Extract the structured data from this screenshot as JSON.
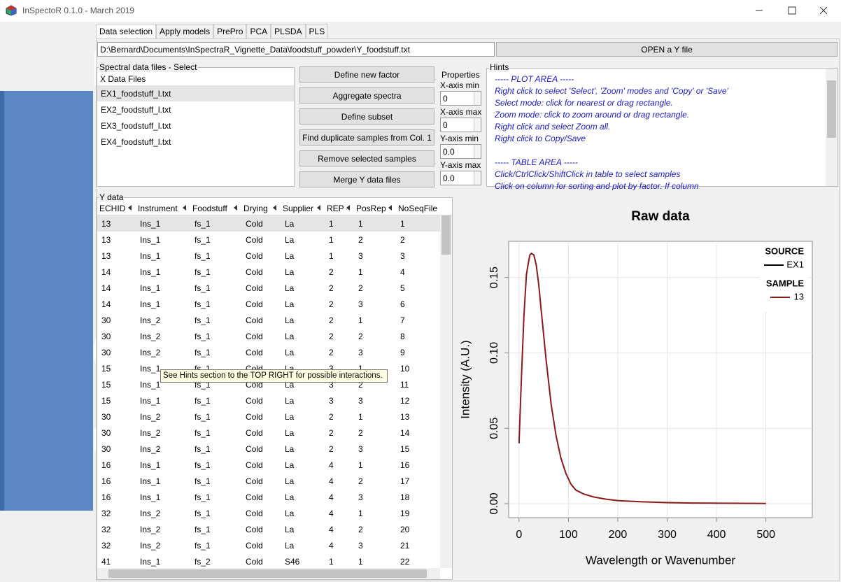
{
  "window": {
    "title": "InSpectoR 0.1.0  -  March 2019"
  },
  "logo": "InSpectraR",
  "tabs": [
    "Data selection",
    "Apply models",
    "PrePro",
    "PCA",
    "PLSDA",
    "PLS"
  ],
  "file_path": "D:\\Bernard\\Documents\\InSpectraR_Vignette_Data\\foodstuff_powder\\Y_foodstuff.txt",
  "open_button": "OPEN a Y file",
  "spectral": {
    "title": "Spectral data files - Select",
    "header": "X Data Files",
    "files": [
      "EX1_foodstuff_l.txt",
      "EX2_foodstuff_l.txt",
      "EX3_foodstuff_l.txt",
      "EX4_foodstuff_l.txt"
    ]
  },
  "buttons": [
    "Define new factor",
    "Aggregate spectra",
    "Define subset",
    "Find duplicate samples from Col. 1",
    "Remove selected samples",
    "Merge Y data files"
  ],
  "properties": {
    "title": "Properties",
    "fields": [
      {
        "label": "X-axis min",
        "value": "0"
      },
      {
        "label": "X-axis max",
        "value": "0"
      },
      {
        "label": "Y-axis min",
        "value": "0.0"
      },
      {
        "label": "Y-axis max",
        "value": "0.0"
      }
    ]
  },
  "hints": {
    "title": "Hints",
    "lines": [
      "----- PLOT AREA -----",
      "Right click to select 'Select', 'Zoom' modes and 'Copy' or 'Save'",
      "Select mode: click for nearest or drag rectangle.",
      "Zoom mode: click to zoom around or drag rectangle.",
      "Right click and select Zoom all.",
      "Right click to Copy/Save",
      "----- TABLE AREA -----",
      "Click/CtrlClick/ShiftClick in table to select samples",
      "Click on column for sorting and plot by factor. If column"
    ]
  },
  "ydata": {
    "title": "Y data",
    "columns": [
      "ECHID",
      "Instrument",
      "Foodstuff",
      "Drying",
      "Supplier",
      "REP",
      "PosRep",
      "NoSeqFile"
    ],
    "rows": [
      [
        "13",
        "Ins_1",
        "fs_1",
        "Cold",
        "La",
        "1",
        "1",
        "1"
      ],
      [
        "13",
        "Ins_1",
        "fs_1",
        "Cold",
        "La",
        "1",
        "2",
        "2"
      ],
      [
        "13",
        "Ins_1",
        "fs_1",
        "Cold",
        "La",
        "1",
        "3",
        "3"
      ],
      [
        "14",
        "Ins_1",
        "fs_1",
        "Cold",
        "La",
        "2",
        "1",
        "4"
      ],
      [
        "14",
        "Ins_1",
        "fs_1",
        "Cold",
        "La",
        "2",
        "2",
        "5"
      ],
      [
        "14",
        "Ins_1",
        "fs_1",
        "Cold",
        "La",
        "2",
        "3",
        "6"
      ],
      [
        "30",
        "Ins_2",
        "fs_1",
        "Cold",
        "La",
        "2",
        "1",
        "7"
      ],
      [
        "30",
        "Ins_2",
        "fs_1",
        "Cold",
        "La",
        "2",
        "2",
        "8"
      ],
      [
        "30",
        "Ins_2",
        "fs_1",
        "Cold",
        "La",
        "2",
        "3",
        "9"
      ],
      [
        "15",
        "Ins_1",
        "fs_1",
        "Cold",
        "La",
        "3",
        "1",
        "10"
      ],
      [
        "15",
        "Ins_1",
        "fs_1",
        "Cold",
        "La",
        "3",
        "2",
        "11"
      ],
      [
        "15",
        "Ins_1",
        "fs_1",
        "Cold",
        "La",
        "3",
        "3",
        "12"
      ],
      [
        "30",
        "Ins_2",
        "fs_1",
        "Cold",
        "La",
        "2",
        "1",
        "13"
      ],
      [
        "30",
        "Ins_2",
        "fs_1",
        "Cold",
        "La",
        "2",
        "2",
        "14"
      ],
      [
        "30",
        "Ins_2",
        "fs_1",
        "Cold",
        "La",
        "2",
        "3",
        "15"
      ],
      [
        "16",
        "Ins_1",
        "fs_1",
        "Cold",
        "La",
        "4",
        "1",
        "16"
      ],
      [
        "16",
        "Ins_1",
        "fs_1",
        "Cold",
        "La",
        "4",
        "2",
        "17"
      ],
      [
        "16",
        "Ins_1",
        "fs_1",
        "Cold",
        "La",
        "4",
        "3",
        "18"
      ],
      [
        "32",
        "Ins_2",
        "fs_1",
        "Cold",
        "La",
        "4",
        "1",
        "19"
      ],
      [
        "32",
        "Ins_2",
        "fs_1",
        "Cold",
        "La",
        "4",
        "2",
        "20"
      ],
      [
        "32",
        "Ins_2",
        "fs_1",
        "Cold",
        "La",
        "4",
        "3",
        "21"
      ],
      [
        "41",
        "Ins_1",
        "fs_2",
        "Cold",
        "S46",
        "1",
        "1",
        "22"
      ]
    ]
  },
  "tooltip": "See Hints section to the TOP RIGHT for possible interactions.",
  "chart_data": {
    "type": "line",
    "title": "Raw data",
    "x_label": "Wavelength or Wavenumber",
    "y_label": "Intensity (A.U.)",
    "x": [
      0,
      5,
      10,
      15,
      18,
      22,
      25,
      30,
      35,
      40,
      45,
      55,
      65,
      75,
      85,
      95,
      105,
      115,
      130,
      150,
      175,
      200,
      250,
      300,
      350,
      400,
      450,
      500
    ],
    "series": [
      {
        "name": "13",
        "color": "#8b1a1a",
        "values": [
          0.04,
          0.085,
          0.125,
          0.152,
          0.158,
          0.165,
          0.166,
          0.165,
          0.158,
          0.145,
          0.128,
          0.095,
          0.066,
          0.045,
          0.03,
          0.02,
          0.013,
          0.009,
          0.0065,
          0.0045,
          0.003,
          0.002,
          0.0012,
          0.0007,
          0.0004,
          0.0003,
          0.0002,
          0.0001
        ]
      }
    ],
    "source_legend": {
      "title": "SOURCE",
      "label": "EX1",
      "color": "#000000"
    },
    "sample_legend_title": "SAMPLE",
    "xlim": [
      -21,
      594
    ],
    "ylim": [
      -0.0093,
      0.174
    ],
    "xticks": [
      0,
      100,
      200,
      300,
      400,
      500
    ],
    "yticks": [
      {
        "value": 0,
        "label": "0.00"
      },
      {
        "value": 0.05,
        "label": "0.05"
      },
      {
        "value": 0.1,
        "label": "0.10"
      },
      {
        "value": 0.15,
        "label": "0.15"
      }
    ],
    "grid": true
  }
}
